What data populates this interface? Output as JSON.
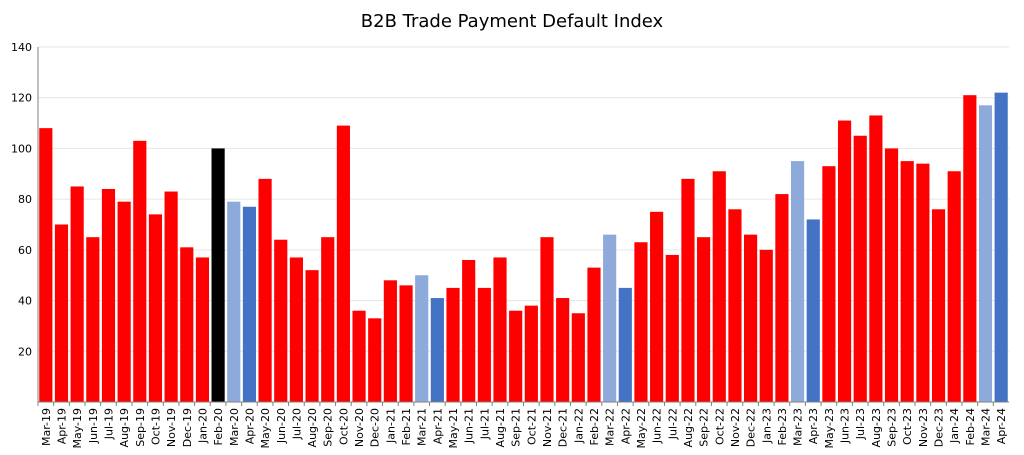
{
  "chart_data": {
    "type": "bar",
    "title": "B2B Trade Payment Default Index",
    "xlabel": "",
    "ylabel": "",
    "ylim": [
      0,
      140
    ],
    "yticks": [
      20,
      40,
      60,
      80,
      100,
      120,
      140
    ],
    "grid": true,
    "legend": "none",
    "colors": {
      "default": "#ff0000",
      "highlight": "#000000",
      "light_blue": "#8eaadb",
      "blue": "#4472c4"
    },
    "categories": [
      "Mar-19",
      "Apr-19",
      "May-19",
      "Jun-19",
      "Jul-19",
      "Aug-19",
      "Sep-19",
      "Oct-19",
      "Nov-19",
      "Dec-19",
      "Jan-20",
      "Feb-20",
      "Mar-20",
      "Apr-20",
      "May-20",
      "Jun-20",
      "Jul-20",
      "Aug-20",
      "Sep-20",
      "Oct-20",
      "Nov-20",
      "Dec-20",
      "Jan-21",
      "Feb-21",
      "Mar-21",
      "Apr-21",
      "May-21",
      "Jun-21",
      "Jul-21",
      "Aug-21",
      "Sep-21",
      "Oct-21",
      "Nov-21",
      "Dec-21",
      "Jan-22",
      "Feb-22",
      "Mar-22",
      "Apr-22",
      "May-22",
      "Jun-22",
      "Jul-22",
      "Aug-22",
      "Sep-22",
      "Oct-22",
      "Nov-22",
      "Dec-22",
      "Jan-23",
      "Feb-23",
      "Mar-23",
      "Apr-23",
      "May-23",
      "Jun-23",
      "Jul-23",
      "Aug-23",
      "Sep-23",
      "Oct-23",
      "Nov-23",
      "Dec-23",
      "Jan-24",
      "Feb-24",
      "Mar-24",
      "Apr-24"
    ],
    "values": [
      108,
      70,
      85,
      65,
      84,
      79,
      103,
      74,
      83,
      61,
      57,
      100,
      79,
      77,
      88,
      64,
      57,
      52,
      65,
      109,
      36,
      33,
      48,
      46,
      50,
      41,
      45,
      56,
      45,
      57,
      36,
      38,
      65,
      41,
      35,
      53,
      66,
      45,
      63,
      75,
      58,
      88,
      65,
      91,
      76,
      66,
      60,
      82,
      95,
      72,
      93,
      111,
      105,
      113,
      100,
      95,
      94,
      76,
      91,
      121,
      117,
      122
    ],
    "bar_colors": [
      "default",
      "default",
      "default",
      "default",
      "default",
      "default",
      "default",
      "default",
      "default",
      "default",
      "default",
      "highlight",
      "light_blue",
      "blue",
      "default",
      "default",
      "default",
      "default",
      "default",
      "default",
      "default",
      "default",
      "default",
      "default",
      "light_blue",
      "blue",
      "default",
      "default",
      "default",
      "default",
      "default",
      "default",
      "default",
      "default",
      "default",
      "default",
      "light_blue",
      "blue",
      "default",
      "default",
      "default",
      "default",
      "default",
      "default",
      "default",
      "default",
      "default",
      "default",
      "light_blue",
      "blue",
      "default",
      "default",
      "default",
      "default",
      "default",
      "default",
      "default",
      "default",
      "default",
      "default",
      "light_blue",
      "blue"
    ]
  }
}
